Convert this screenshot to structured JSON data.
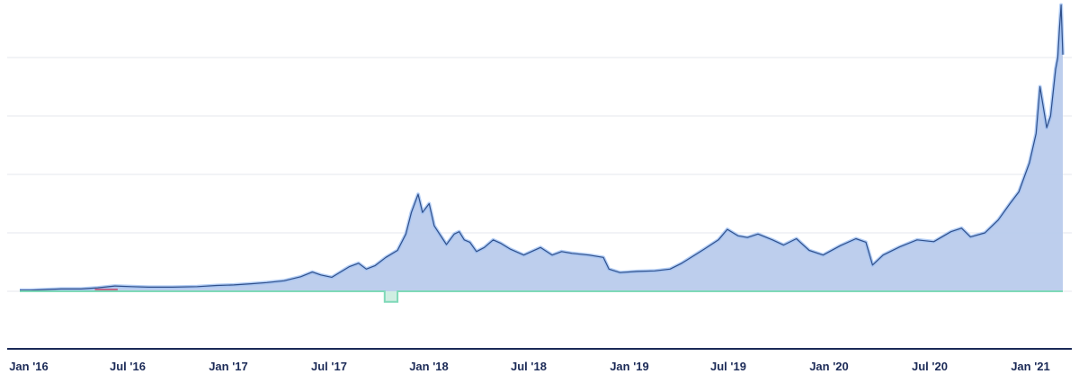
{
  "chart_data": {
    "type": "area",
    "title": "",
    "xlabel": "",
    "ylabel": "",
    "x_tick_labels": [
      "Jan '16",
      "Jul '16",
      "Jan '17",
      "Jul '17",
      "Jan '18",
      "Jul '18",
      "Jan '19",
      "Jul '19",
      "Jan '20",
      "Jul '20",
      "Jan '21"
    ],
    "x_range": [
      "2016-01-01",
      "2021-02-18"
    ],
    "y_range": [
      -1,
      5
    ],
    "y_gridlines": [
      0,
      1,
      2,
      3,
      4,
      5
    ],
    "grid": true,
    "legend": "none",
    "colors": {
      "area_fill": "#b9cbec",
      "area_line": "#2f4f8a",
      "line_glow": "#9fc0f2",
      "secondary_line": "#7fd9b8",
      "secondary_fill": "#cfeee2",
      "highlight_segment": "#c0476a",
      "axis": "#1b2a57",
      "tick_text": "#1b2a57",
      "grid": "#e5e7ee"
    },
    "series": [
      {
        "type": "area",
        "points": [
          [
            "2016-01-01",
            0.02
          ],
          [
            "2016-01-20",
            0.02
          ],
          [
            "2016-02-15",
            0.03
          ],
          [
            "2016-03-15",
            0.04
          ],
          [
            "2016-04-20",
            0.04
          ],
          [
            "2016-05-20",
            0.06
          ],
          [
            "2016-06-20",
            0.09
          ],
          [
            "2016-07-20",
            0.08
          ],
          [
            "2016-08-20",
            0.07
          ],
          [
            "2016-10-01",
            0.07
          ],
          [
            "2016-11-15",
            0.08
          ],
          [
            "2016-12-20",
            0.1
          ],
          [
            "2017-01-20",
            0.11
          ],
          [
            "2017-02-20",
            0.13
          ],
          [
            "2017-03-20",
            0.15
          ],
          [
            "2017-04-20",
            0.18
          ],
          [
            "2017-05-20",
            0.25
          ],
          [
            "2017-06-10",
            0.33
          ],
          [
            "2017-06-25",
            0.28
          ],
          [
            "2017-07-15",
            0.24
          ],
          [
            "2017-08-15",
            0.42
          ],
          [
            "2017-09-01",
            0.48
          ],
          [
            "2017-09-15",
            0.38
          ],
          [
            "2017-10-01",
            0.44
          ],
          [
            "2017-10-20",
            0.58
          ],
          [
            "2017-11-10",
            0.7
          ],
          [
            "2017-11-25",
            0.98
          ],
          [
            "2017-12-05",
            1.35
          ],
          [
            "2017-12-17",
            1.66
          ],
          [
            "2017-12-25",
            1.35
          ],
          [
            "2018-01-06",
            1.5
          ],
          [
            "2018-01-15",
            1.12
          ],
          [
            "2018-02-06",
            0.8
          ],
          [
            "2018-02-20",
            0.98
          ],
          [
            "2018-03-01",
            1.02
          ],
          [
            "2018-03-10",
            0.88
          ],
          [
            "2018-03-20",
            0.84
          ],
          [
            "2018-04-01",
            0.68
          ],
          [
            "2018-04-15",
            0.75
          ],
          [
            "2018-05-01",
            0.88
          ],
          [
            "2018-05-15",
            0.82
          ],
          [
            "2018-06-01",
            0.72
          ],
          [
            "2018-06-25",
            0.62
          ],
          [
            "2018-07-25",
            0.75
          ],
          [
            "2018-08-15",
            0.62
          ],
          [
            "2018-09-01",
            0.68
          ],
          [
            "2018-09-20",
            0.65
          ],
          [
            "2018-10-20",
            0.62
          ],
          [
            "2018-11-15",
            0.58
          ],
          [
            "2018-11-25",
            0.38
          ],
          [
            "2018-12-15",
            0.32
          ],
          [
            "2019-01-15",
            0.34
          ],
          [
            "2019-02-15",
            0.35
          ],
          [
            "2019-03-15",
            0.38
          ],
          [
            "2019-04-05",
            0.48
          ],
          [
            "2019-05-15",
            0.72
          ],
          [
            "2019-06-10",
            0.88
          ],
          [
            "2019-06-26",
            1.06
          ],
          [
            "2019-07-15",
            0.95
          ],
          [
            "2019-08-01",
            0.92
          ],
          [
            "2019-08-20",
            0.98
          ],
          [
            "2019-09-15",
            0.88
          ],
          [
            "2019-10-05",
            0.79
          ],
          [
            "2019-10-28",
            0.9
          ],
          [
            "2019-11-20",
            0.7
          ],
          [
            "2019-12-15",
            0.62
          ],
          [
            "2020-01-15",
            0.78
          ],
          [
            "2020-02-12",
            0.9
          ],
          [
            "2020-03-01",
            0.84
          ],
          [
            "2020-03-13",
            0.45
          ],
          [
            "2020-04-01",
            0.62
          ],
          [
            "2020-05-01",
            0.76
          ],
          [
            "2020-06-01",
            0.88
          ],
          [
            "2020-07-01",
            0.85
          ],
          [
            "2020-08-01",
            1.02
          ],
          [
            "2020-08-20",
            1.08
          ],
          [
            "2020-09-05",
            0.93
          ],
          [
            "2020-10-01",
            1.0
          ],
          [
            "2020-10-25",
            1.22
          ],
          [
            "2020-11-15",
            1.5
          ],
          [
            "2020-12-01",
            1.7
          ],
          [
            "2020-12-20",
            2.2
          ],
          [
            "2021-01-01",
            2.7
          ],
          [
            "2021-01-08",
            3.5
          ],
          [
            "2021-01-20",
            2.8
          ],
          [
            "2021-01-27",
            3.0
          ],
          [
            "2021-02-05",
            3.8
          ],
          [
            "2021-02-09",
            4.0
          ],
          [
            "2021-02-12",
            4.5
          ],
          [
            "2021-02-15",
            4.9
          ],
          [
            "2021-02-18",
            4.05
          ]
        ]
      },
      {
        "type": "line",
        "points": [
          [
            "2016-01-01",
            0.0
          ],
          [
            "2017-10-18",
            0.0
          ],
          [
            "2017-10-18",
            -0.18
          ],
          [
            "2017-11-10",
            -0.18
          ],
          [
            "2017-11-10",
            0.0
          ],
          [
            "2021-02-18",
            0.0
          ]
        ]
      }
    ]
  }
}
